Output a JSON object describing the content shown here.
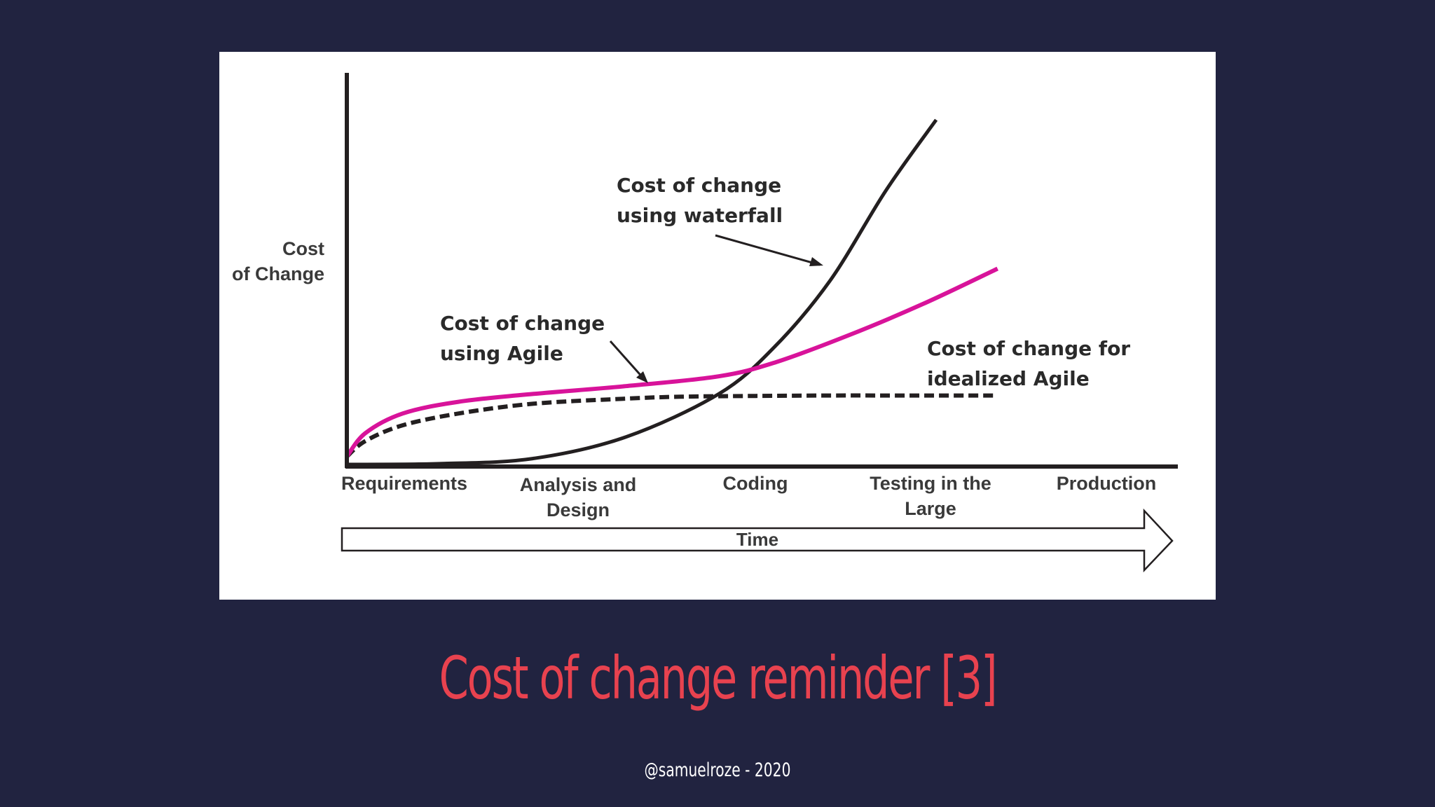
{
  "slide": {
    "title": "Cost of change reminder [3]",
    "footer": "@samuelroze - 2020",
    "title_color": "#e8424f",
    "background_color": "#212340"
  },
  "chart_data": {
    "type": "line",
    "ylabel_line1": "Cost",
    "ylabel_line2": "of Change",
    "xlabel": "Time",
    "categories": [
      {
        "line1": "Requirements",
        "line2": ""
      },
      {
        "line1": "Analysis and",
        "line2": "Design"
      },
      {
        "line1": "Coding",
        "line2": ""
      },
      {
        "line1": "Testing in the",
        "line2": "Large"
      },
      {
        "line1": "Production",
        "line2": ""
      }
    ],
    "xlim": [
      0,
      4.5
    ],
    "ylim": [
      0,
      100
    ],
    "grid": false,
    "legend": "none",
    "series": [
      {
        "key": "waterfall",
        "color": "#231f20",
        "style": "solid",
        "x": [
          0,
          0.5,
          1.0,
          1.5,
          2.0,
          2.3,
          2.6,
          2.9,
          3.17
        ],
        "y": [
          0,
          0.2,
          1.5,
          7,
          18,
          30,
          47,
          70,
          88
        ]
      },
      {
        "key": "agile",
        "color": "#d8139a",
        "style": "solid",
        "x": [
          0,
          0.1,
          0.3,
          0.6,
          1.0,
          1.5,
          2.0,
          2.3,
          2.7,
          3.1,
          3.5
        ],
        "y": [
          2,
          8,
          13,
          16,
          18,
          20,
          22.5,
          26,
          33,
          41,
          50
        ]
      },
      {
        "key": "idealized-agile",
        "color": "#231f20",
        "style": "dashed",
        "x": [
          0,
          0.1,
          0.3,
          0.6,
          1.0,
          1.5,
          1.8,
          2.2,
          2.6,
          3.0,
          3.5
        ],
        "y": [
          2,
          6,
          10,
          13,
          15.5,
          16.8,
          17.3,
          17.5,
          17.6,
          17.6,
          17.6
        ]
      }
    ],
    "annotations": [
      {
        "key": "waterfall",
        "line1": "Cost of change",
        "line2": "using waterfall"
      },
      {
        "key": "agile",
        "line1": "Cost of change",
        "line2": "using Agile"
      },
      {
        "key": "idealized",
        "line1": "Cost of change for",
        "line2": "idealized Agile"
      }
    ]
  }
}
